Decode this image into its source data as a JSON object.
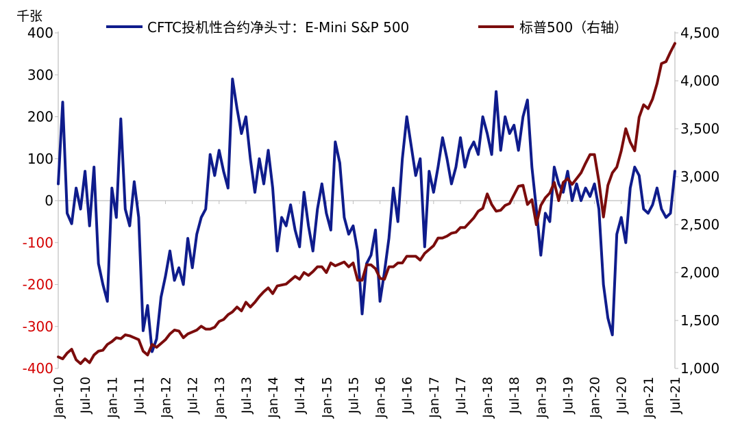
{
  "chart_data": {
    "type": "line",
    "unit_label": "千张",
    "x_ticks": [
      "Jan-10",
      "Jul-10",
      "Jan-11",
      "Jul-11",
      "Jan-12",
      "Jul-12",
      "Jan-13",
      "Jul-13",
      "Jan-14",
      "Jul-14",
      "Jan-15",
      "Jul-15",
      "Jan-16",
      "Jul-16",
      "Jan-17",
      "Jul-17",
      "Jan-18",
      "Jul-18",
      "Jan-19",
      "Jul-19",
      "Jan-20",
      "Jul-20",
      "Jan-21",
      "Jul-21"
    ],
    "y_left": {
      "min": -400,
      "max": 400,
      "ticks": [
        "-400",
        "-300",
        "-200",
        "-100",
        "0",
        "100",
        "200",
        "300",
        "400"
      ]
    },
    "y_right": {
      "min": 1000,
      "max": 4500,
      "ticks": [
        "1,000",
        "1,500",
        "2,000",
        "2,500",
        "3,000",
        "3,500",
        "4,000",
        "4,500"
      ]
    },
    "grid": false,
    "legend_position": "top",
    "series": [
      {
        "name": "CFTC投机性合约净头寸：E-Mini S&P 500",
        "axis": "left",
        "color": "#0f1c8c",
        "points": [
          [
            "2010-01",
            40
          ],
          [
            "2010-02",
            235
          ],
          [
            "2010-03",
            -30
          ],
          [
            "2010-04",
            -55
          ],
          [
            "2010-05",
            30
          ],
          [
            "2010-06",
            -20
          ],
          [
            "2010-07",
            70
          ],
          [
            "2010-08",
            -60
          ],
          [
            "2010-09",
            80
          ],
          [
            "2010-10",
            -150
          ],
          [
            "2010-11",
            -200
          ],
          [
            "2010-12",
            -240
          ],
          [
            "2011-01",
            30
          ],
          [
            "2011-02",
            -40
          ],
          [
            "2011-03",
            195
          ],
          [
            "2011-04",
            -20
          ],
          [
            "2011-05",
            -60
          ],
          [
            "2011-06",
            45
          ],
          [
            "2011-07",
            -40
          ],
          [
            "2011-08",
            -310
          ],
          [
            "2011-09",
            -250
          ],
          [
            "2011-10",
            -360
          ],
          [
            "2011-11",
            -330
          ],
          [
            "2011-12",
            -230
          ],
          [
            "2012-01",
            -180
          ],
          [
            "2012-02",
            -120
          ],
          [
            "2012-03",
            -190
          ],
          [
            "2012-04",
            -160
          ],
          [
            "2012-05",
            -200
          ],
          [
            "2012-06",
            -90
          ],
          [
            "2012-07",
            -160
          ],
          [
            "2012-08",
            -80
          ],
          [
            "2012-09",
            -40
          ],
          [
            "2012-10",
            -20
          ],
          [
            "2012-11",
            110
          ],
          [
            "2012-12",
            60
          ],
          [
            "2013-01",
            120
          ],
          [
            "2013-02",
            70
          ],
          [
            "2013-03",
            30
          ],
          [
            "2013-04",
            290
          ],
          [
            "2013-05",
            220
          ],
          [
            "2013-06",
            160
          ],
          [
            "2013-07",
            200
          ],
          [
            "2013-08",
            100
          ],
          [
            "2013-09",
            20
          ],
          [
            "2013-10",
            100
          ],
          [
            "2013-11",
            40
          ],
          [
            "2013-12",
            120
          ],
          [
            "2014-01",
            30
          ],
          [
            "2014-02",
            -120
          ],
          [
            "2014-03",
            -40
          ],
          [
            "2014-04",
            -60
          ],
          [
            "2014-05",
            -10
          ],
          [
            "2014-06",
            -70
          ],
          [
            "2014-07",
            -110
          ],
          [
            "2014-08",
            20
          ],
          [
            "2014-09",
            -60
          ],
          [
            "2014-10",
            -120
          ],
          [
            "2014-11",
            -20
          ],
          [
            "2014-12",
            40
          ],
          [
            "2015-01",
            -30
          ],
          [
            "2015-02",
            -70
          ],
          [
            "2015-03",
            140
          ],
          [
            "2015-04",
            90
          ],
          [
            "2015-05",
            -40
          ],
          [
            "2015-06",
            -80
          ],
          [
            "2015-07",
            -60
          ],
          [
            "2015-08",
            -120
          ],
          [
            "2015-09",
            -270
          ],
          [
            "2015-10",
            -150
          ],
          [
            "2015-11",
            -130
          ],
          [
            "2015-12",
            -70
          ],
          [
            "2016-01",
            -240
          ],
          [
            "2016-02",
            -170
          ],
          [
            "2016-03",
            -90
          ],
          [
            "2016-04",
            30
          ],
          [
            "2016-05",
            -50
          ],
          [
            "2016-06",
            100
          ],
          [
            "2016-07",
            200
          ],
          [
            "2016-08",
            130
          ],
          [
            "2016-09",
            60
          ],
          [
            "2016-10",
            100
          ],
          [
            "2016-11",
            -110
          ],
          [
            "2016-12",
            70
          ],
          [
            "2017-01",
            20
          ],
          [
            "2017-02",
            80
          ],
          [
            "2017-03",
            150
          ],
          [
            "2017-04",
            100
          ],
          [
            "2017-05",
            40
          ],
          [
            "2017-06",
            80
          ],
          [
            "2017-07",
            150
          ],
          [
            "2017-08",
            80
          ],
          [
            "2017-09",
            120
          ],
          [
            "2017-10",
            140
          ],
          [
            "2017-11",
            110
          ],
          [
            "2017-12",
            200
          ],
          [
            "2018-01",
            160
          ],
          [
            "2018-02",
            110
          ],
          [
            "2018-03",
            260
          ],
          [
            "2018-04",
            120
          ],
          [
            "2018-05",
            200
          ],
          [
            "2018-06",
            160
          ],
          [
            "2018-07",
            180
          ],
          [
            "2018-08",
            120
          ],
          [
            "2018-09",
            200
          ],
          [
            "2018-10",
            240
          ],
          [
            "2018-11",
            80
          ],
          [
            "2018-12",
            -20
          ],
          [
            "2019-01",
            -130
          ],
          [
            "2019-02",
            -30
          ],
          [
            "2019-03",
            -50
          ],
          [
            "2019-04",
            80
          ],
          [
            "2019-05",
            40
          ],
          [
            "2019-06",
            20
          ],
          [
            "2019-07",
            70
          ],
          [
            "2019-08",
            0
          ],
          [
            "2019-09",
            40
          ],
          [
            "2019-10",
            0
          ],
          [
            "2019-11",
            30
          ],
          [
            "2019-12",
            10
          ],
          [
            "2020-01",
            40
          ],
          [
            "2020-02",
            -20
          ],
          [
            "2020-03",
            -200
          ],
          [
            "2020-04",
            -280
          ],
          [
            "2020-05",
            -320
          ],
          [
            "2020-06",
            -80
          ],
          [
            "2020-07",
            -40
          ],
          [
            "2020-08",
            -100
          ],
          [
            "2020-09",
            30
          ],
          [
            "2020-10",
            80
          ],
          [
            "2020-11",
            60
          ],
          [
            "2020-12",
            -20
          ],
          [
            "2021-01",
            -30
          ],
          [
            "2021-02",
            -10
          ],
          [
            "2021-03",
            30
          ],
          [
            "2021-04",
            -20
          ],
          [
            "2021-05",
            -40
          ],
          [
            "2021-06",
            -30
          ],
          [
            "2021-07",
            70
          ]
        ]
      },
      {
        "name": "标普500（右轴）",
        "axis": "right",
        "color": "#7b0c0c",
        "points": [
          [
            "2010-01",
            1120
          ],
          [
            "2010-02",
            1100
          ],
          [
            "2010-03",
            1160
          ],
          [
            "2010-04",
            1200
          ],
          [
            "2010-05",
            1090
          ],
          [
            "2010-06",
            1050
          ],
          [
            "2010-07",
            1100
          ],
          [
            "2010-08",
            1060
          ],
          [
            "2010-09",
            1140
          ],
          [
            "2010-10",
            1180
          ],
          [
            "2010-11",
            1190
          ],
          [
            "2010-12",
            1250
          ],
          [
            "2011-01",
            1280
          ],
          [
            "2011-02",
            1320
          ],
          [
            "2011-03",
            1310
          ],
          [
            "2011-04",
            1350
          ],
          [
            "2011-05",
            1340
          ],
          [
            "2011-06",
            1320
          ],
          [
            "2011-07",
            1300
          ],
          [
            "2011-08",
            1180
          ],
          [
            "2011-09",
            1140
          ],
          [
            "2011-10",
            1250
          ],
          [
            "2011-11",
            1220
          ],
          [
            "2011-12",
            1260
          ],
          [
            "2012-01",
            1300
          ],
          [
            "2012-02",
            1360
          ],
          [
            "2012-03",
            1400
          ],
          [
            "2012-04",
            1390
          ],
          [
            "2012-05",
            1320
          ],
          [
            "2012-06",
            1360
          ],
          [
            "2012-07",
            1380
          ],
          [
            "2012-08",
            1400
          ],
          [
            "2012-09",
            1440
          ],
          [
            "2012-10",
            1410
          ],
          [
            "2012-11",
            1410
          ],
          [
            "2012-12",
            1430
          ],
          [
            "2013-01",
            1490
          ],
          [
            "2013-02",
            1510
          ],
          [
            "2013-03",
            1560
          ],
          [
            "2013-04",
            1590
          ],
          [
            "2013-05",
            1640
          ],
          [
            "2013-06",
            1600
          ],
          [
            "2013-07",
            1690
          ],
          [
            "2013-08",
            1640
          ],
          [
            "2013-09",
            1690
          ],
          [
            "2013-10",
            1750
          ],
          [
            "2013-11",
            1800
          ],
          [
            "2013-12",
            1840
          ],
          [
            "2014-01",
            1780
          ],
          [
            "2014-02",
            1860
          ],
          [
            "2014-03",
            1870
          ],
          [
            "2014-04",
            1880
          ],
          [
            "2014-05",
            1920
          ],
          [
            "2014-06",
            1960
          ],
          [
            "2014-07",
            1930
          ],
          [
            "2014-08",
            2000
          ],
          [
            "2014-09",
            1970
          ],
          [
            "2014-10",
            2010
          ],
          [
            "2014-11",
            2060
          ],
          [
            "2014-12",
            2060
          ],
          [
            "2015-01",
            2000
          ],
          [
            "2015-02",
            2100
          ],
          [
            "2015-03",
            2070
          ],
          [
            "2015-04",
            2090
          ],
          [
            "2015-05",
            2110
          ],
          [
            "2015-06",
            2060
          ],
          [
            "2015-07",
            2100
          ],
          [
            "2015-08",
            1920
          ],
          [
            "2015-09",
            1920
          ],
          [
            "2015-10",
            2080
          ],
          [
            "2015-11",
            2080
          ],
          [
            "2015-12",
            2040
          ],
          [
            "2016-01",
            1940
          ],
          [
            "2016-02",
            1930
          ],
          [
            "2016-03",
            2060
          ],
          [
            "2016-04",
            2060
          ],
          [
            "2016-05",
            2100
          ],
          [
            "2016-06",
            2100
          ],
          [
            "2016-07",
            2170
          ],
          [
            "2016-08",
            2170
          ],
          [
            "2016-09",
            2170
          ],
          [
            "2016-10",
            2130
          ],
          [
            "2016-11",
            2200
          ],
          [
            "2016-12",
            2240
          ],
          [
            "2017-01",
            2280
          ],
          [
            "2017-02",
            2360
          ],
          [
            "2017-03",
            2360
          ],
          [
            "2017-04",
            2380
          ],
          [
            "2017-05",
            2410
          ],
          [
            "2017-06",
            2420
          ],
          [
            "2017-07",
            2470
          ],
          [
            "2017-08",
            2470
          ],
          [
            "2017-09",
            2520
          ],
          [
            "2017-10",
            2570
          ],
          [
            "2017-11",
            2640
          ],
          [
            "2017-12",
            2670
          ],
          [
            "2018-01",
            2820
          ],
          [
            "2018-02",
            2710
          ],
          [
            "2018-03",
            2640
          ],
          [
            "2018-04",
            2650
          ],
          [
            "2018-05",
            2700
          ],
          [
            "2018-06",
            2720
          ],
          [
            "2018-07",
            2810
          ],
          [
            "2018-08",
            2900
          ],
          [
            "2018-09",
            2910
          ],
          [
            "2018-10",
            2710
          ],
          [
            "2018-11",
            2760
          ],
          [
            "2018-12",
            2500
          ],
          [
            "2019-01",
            2700
          ],
          [
            "2019-02",
            2780
          ],
          [
            "2019-03",
            2830
          ],
          [
            "2019-04",
            2940
          ],
          [
            "2019-05",
            2750
          ],
          [
            "2019-06",
            2940
          ],
          [
            "2019-07",
            2980
          ],
          [
            "2019-08",
            2920
          ],
          [
            "2019-09",
            2980
          ],
          [
            "2019-10",
            3040
          ],
          [
            "2019-11",
            3140
          ],
          [
            "2019-12",
            3230
          ],
          [
            "2020-01",
            3230
          ],
          [
            "2020-02",
            2950
          ],
          [
            "2020-03",
            2580
          ],
          [
            "2020-04",
            2910
          ],
          [
            "2020-05",
            3040
          ],
          [
            "2020-06",
            3100
          ],
          [
            "2020-07",
            3270
          ],
          [
            "2020-08",
            3500
          ],
          [
            "2020-09",
            3360
          ],
          [
            "2020-10",
            3270
          ],
          [
            "2020-11",
            3620
          ],
          [
            "2020-12",
            3750
          ],
          [
            "2021-01",
            3710
          ],
          [
            "2021-02",
            3810
          ],
          [
            "2021-03",
            3970
          ],
          [
            "2021-04",
            4180
          ],
          [
            "2021-05",
            4200
          ],
          [
            "2021-06",
            4300
          ],
          [
            "2021-07",
            4390
          ]
        ]
      }
    ]
  }
}
